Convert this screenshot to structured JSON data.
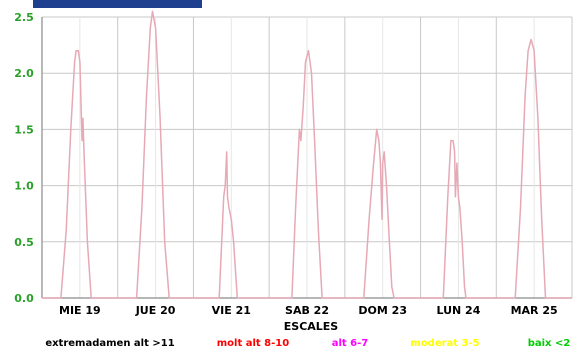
{
  "chart_data": {
    "type": "line",
    "xlabel": "ESCALES",
    "ylim": [
      0,
      2.5
    ],
    "yticks": [
      "0.0",
      "0.5",
      "1.0",
      "1.5",
      "2.0",
      "2.5"
    ],
    "categories": [
      "MIE 19",
      "JUE 20",
      "VIE 21",
      "SAB 22",
      "DOM 23",
      "LUN 24",
      "MAR 25"
    ],
    "grid": true,
    "legend_position": "bottom",
    "legend": [
      {
        "label": "extremadamen alt >11",
        "color": "#000000"
      },
      {
        "label": "molt alt 8-10",
        "color": "#ff0000"
      },
      {
        "label": "alt 6-7",
        "color": "#ff00ff"
      },
      {
        "label": "moderat 3-5",
        "color": "#ffff00"
      },
      {
        "label": "baix <2",
        "color": "#00cc00"
      }
    ],
    "series": [
      {
        "color": "#e6a9b6",
        "points": [
          [
            0.0,
            0.0
          ],
          [
            0.25,
            0.0
          ],
          [
            0.32,
            0.6
          ],
          [
            0.38,
            1.5
          ],
          [
            0.43,
            2.1
          ],
          [
            0.45,
            2.2
          ],
          [
            0.48,
            2.2
          ],
          [
            0.5,
            2.1
          ],
          [
            0.52,
            1.6
          ],
          [
            0.53,
            1.4
          ],
          [
            0.54,
            1.6
          ],
          [
            0.56,
            1.2
          ],
          [
            0.6,
            0.5
          ],
          [
            0.65,
            0.0
          ],
          [
            1.0,
            0.0
          ],
          [
            1.25,
            0.0
          ],
          [
            1.32,
            0.8
          ],
          [
            1.38,
            1.8
          ],
          [
            1.43,
            2.4
          ],
          [
            1.46,
            2.55
          ],
          [
            1.5,
            2.4
          ],
          [
            1.56,
            1.6
          ],
          [
            1.62,
            0.5
          ],
          [
            1.68,
            0.0
          ],
          [
            2.0,
            0.0
          ],
          [
            2.34,
            0.0
          ],
          [
            2.38,
            0.6
          ],
          [
            2.4,
            0.9
          ],
          [
            2.42,
            1.0
          ],
          [
            2.44,
            1.3
          ],
          [
            2.45,
            0.9
          ],
          [
            2.47,
            0.8
          ],
          [
            2.5,
            0.7
          ],
          [
            2.53,
            0.5
          ],
          [
            2.56,
            0.2
          ],
          [
            2.58,
            0.0
          ],
          [
            3.0,
            0.0
          ],
          [
            3.3,
            0.0
          ],
          [
            3.35,
            0.8
          ],
          [
            3.4,
            1.5
          ],
          [
            3.42,
            1.4
          ],
          [
            3.45,
            1.7
          ],
          [
            3.48,
            2.1
          ],
          [
            3.52,
            2.2
          ],
          [
            3.56,
            2.0
          ],
          [
            3.6,
            1.4
          ],
          [
            3.65,
            0.6
          ],
          [
            3.7,
            0.0
          ],
          [
            4.0,
            0.0
          ],
          [
            4.25,
            0.0
          ],
          [
            4.32,
            0.7
          ],
          [
            4.38,
            1.2
          ],
          [
            4.42,
            1.5
          ],
          [
            4.45,
            1.4
          ],
          [
            4.47,
            1.2
          ],
          [
            4.49,
            0.7
          ],
          [
            4.5,
            1.2
          ],
          [
            4.52,
            1.3
          ],
          [
            4.55,
            1.0
          ],
          [
            4.58,
            0.6
          ],
          [
            4.62,
            0.1
          ],
          [
            4.65,
            0.0
          ],
          [
            5.0,
            0.0
          ],
          [
            5.3,
            0.0
          ],
          [
            5.36,
            0.9
          ],
          [
            5.4,
            1.4
          ],
          [
            5.43,
            1.4
          ],
          [
            5.45,
            1.3
          ],
          [
            5.46,
            0.9
          ],
          [
            5.48,
            1.2
          ],
          [
            5.5,
            0.9
          ],
          [
            5.52,
            0.8
          ],
          [
            5.55,
            0.5
          ],
          [
            5.58,
            0.1
          ],
          [
            5.6,
            0.0
          ],
          [
            6.0,
            0.0
          ],
          [
            6.25,
            0.0
          ],
          [
            6.32,
            0.8
          ],
          [
            6.38,
            1.8
          ],
          [
            6.42,
            2.2
          ],
          [
            6.46,
            2.3
          ],
          [
            6.5,
            2.2
          ],
          [
            6.55,
            1.6
          ],
          [
            6.6,
            0.7
          ],
          [
            6.65,
            0.0
          ],
          [
            7.0,
            0.0
          ]
        ]
      }
    ]
  }
}
